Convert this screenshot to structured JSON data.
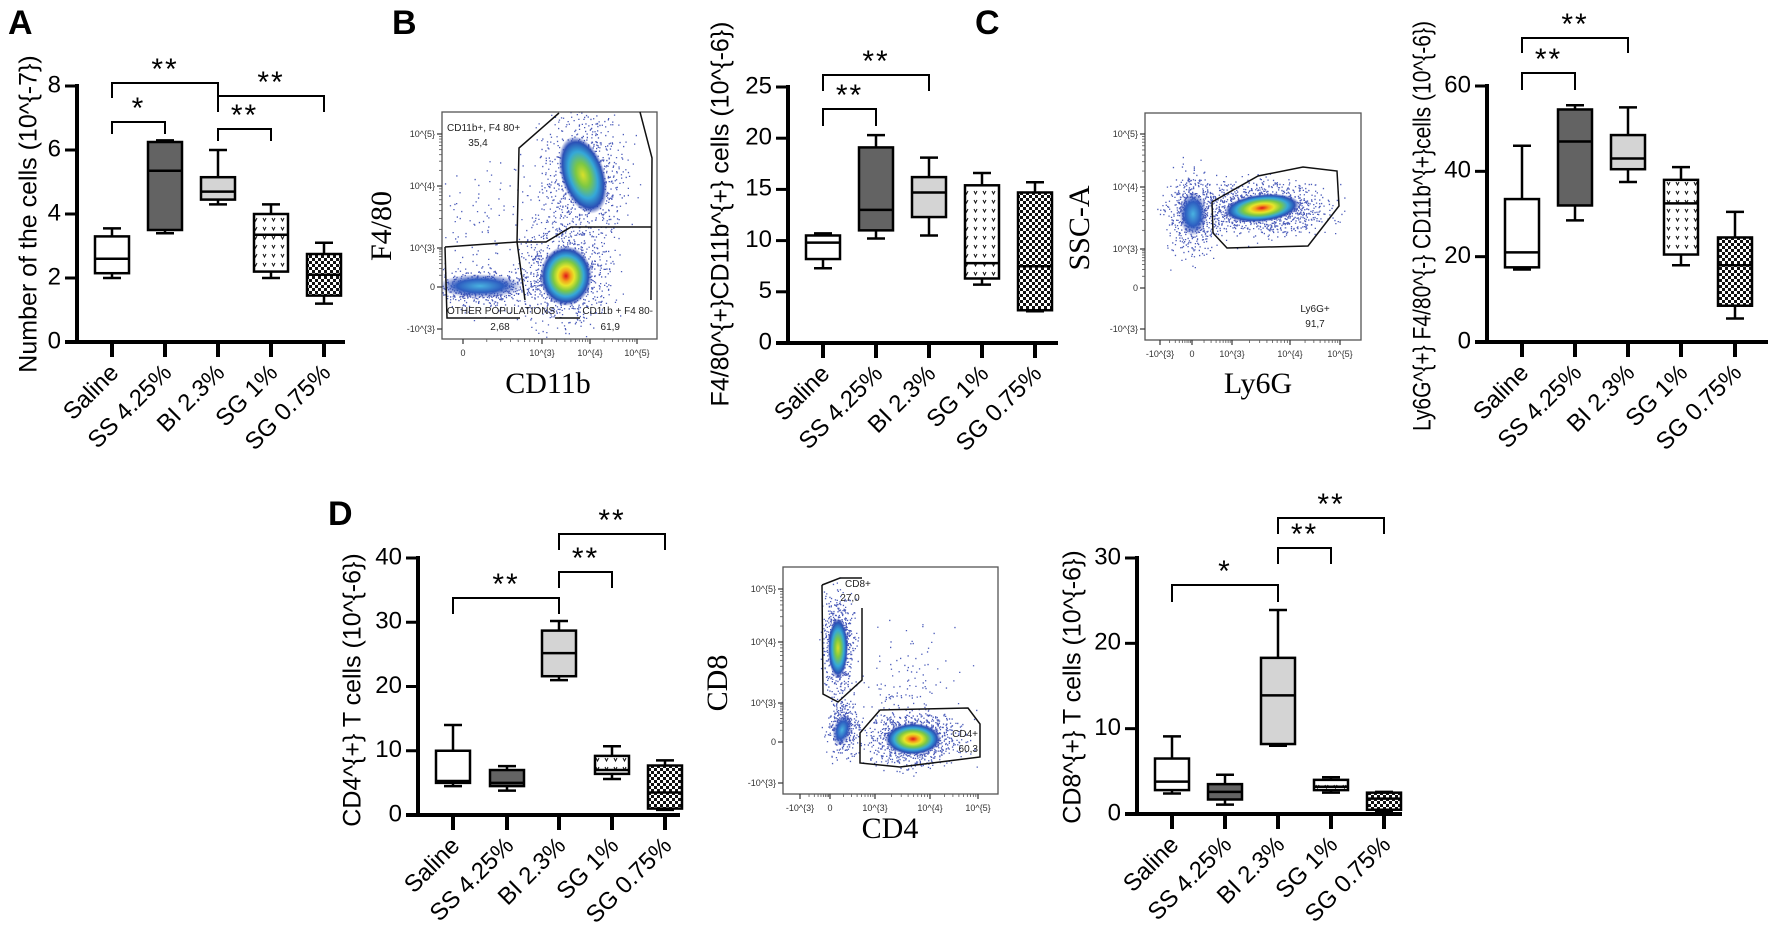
{
  "panels": {
    "A": "A",
    "B": "B",
    "C": "C",
    "D": "D"
  },
  "chart_data": [
    {
      "type": "box",
      "panel": "A",
      "ylabel": "Number of the cells (10^{-7})",
      "ylim": [
        0,
        8
      ],
      "yticks": [
        "0",
        "2",
        "4",
        "6",
        "8"
      ],
      "categories": [
        "Saline",
        "SS 4.25%",
        "BI 2.3%",
        "SG 1%",
        "SG 0.75%"
      ],
      "fills": [
        "#ffffff",
        "#636363",
        "#d4d4d4",
        "dots",
        "checker"
      ],
      "series": [
        {
          "min": 2.0,
          "q1": 2.15,
          "median": 2.6,
          "q3": 3.3,
          "max": 3.55
        },
        {
          "min": 3.4,
          "q1": 3.5,
          "median": 5.35,
          "q3": 6.25,
          "max": 6.3
        },
        {
          "min": 4.3,
          "q1": 4.45,
          "median": 4.7,
          "q3": 5.15,
          "max": 6.0
        },
        {
          "min": 2.0,
          "q1": 2.2,
          "median": 3.35,
          "q3": 4.0,
          "max": 4.3
        },
        {
          "min": 1.2,
          "q1": 1.45,
          "median": 2.1,
          "q3": 2.75,
          "max": 3.1
        }
      ],
      "significance": [
        {
          "from": 0,
          "to": 2,
          "label": "**"
        },
        {
          "from": 0,
          "to": 1,
          "label": "*"
        },
        {
          "from": 2,
          "to": 4,
          "label": "**"
        },
        {
          "from": 2,
          "to": 3,
          "label": "**"
        }
      ]
    },
    {
      "type": "box",
      "panel": "B",
      "ylabel": "F4/80^{+}CD11b^{+} cells (10^{-6})",
      "ylim": [
        0,
        25
      ],
      "yticks": [
        "0",
        "5",
        "10",
        "15",
        "20",
        "25"
      ],
      "categories": [
        "Saline",
        "SS 4.25%",
        "BI 2.3%",
        "SG 1%",
        "SG 0.75%"
      ],
      "fills": [
        "#ffffff",
        "#636363",
        "#d4d4d4",
        "dots",
        "checker"
      ],
      "series": [
        {
          "min": 7.3,
          "q1": 8.2,
          "median": 9.8,
          "q3": 10.5,
          "max": 10.7
        },
        {
          "min": 10.2,
          "q1": 11.0,
          "median": 13.0,
          "q3": 19.1,
          "max": 20.3
        },
        {
          "min": 10.5,
          "q1": 12.3,
          "median": 14.7,
          "q3": 16.2,
          "max": 18.1
        },
        {
          "min": 5.7,
          "q1": 6.3,
          "median": 7.8,
          "q3": 15.4,
          "max": 16.6
        },
        {
          "min": 3.1,
          "q1": 3.2,
          "median": 7.5,
          "q3": 14.7,
          "max": 15.7
        }
      ],
      "significance": [
        {
          "from": 0,
          "to": 2,
          "label": "**"
        },
        {
          "from": 0,
          "to": 1,
          "label": "**"
        }
      ]
    },
    {
      "type": "box",
      "panel": "C",
      "ylabel": "Ly6G^{+} F4/80^{-} CD11b^{+}cells (10^{-6})",
      "ylim": [
        0,
        60
      ],
      "yticks": [
        "0",
        "20",
        "40",
        "60"
      ],
      "categories": [
        "Saline",
        "SS 4.25%",
        "BI 2.3%",
        "SG 1%",
        "SG 0.75%"
      ],
      "fills": [
        "#ffffff",
        "#636363",
        "#d4d4d4",
        "dots",
        "checker"
      ],
      "series": [
        {
          "min": 17.0,
          "q1": 17.5,
          "median": 21.0,
          "q3": 33.5,
          "max": 46.0
        },
        {
          "min": 28.5,
          "q1": 32.0,
          "median": 47.0,
          "q3": 54.5,
          "max": 55.5
        },
        {
          "min": 37.5,
          "q1": 40.5,
          "median": 43.0,
          "q3": 48.5,
          "max": 55.0
        },
        {
          "min": 18.0,
          "q1": 20.5,
          "median": 32.5,
          "q3": 38.0,
          "max": 41.0
        },
        {
          "min": 5.5,
          "q1": 8.5,
          "median": 18.0,
          "q3": 24.5,
          "max": 30.5
        }
      ],
      "significance": [
        {
          "from": 0,
          "to": 2,
          "label": "**"
        },
        {
          "from": 0,
          "to": 1,
          "label": "**"
        }
      ]
    },
    {
      "type": "box",
      "panel": "D",
      "ylabel": "CD4^{+} T cells (10^{-6})",
      "ylim": [
        0,
        40
      ],
      "yticks": [
        "0",
        "10",
        "20",
        "30",
        "40"
      ],
      "categories": [
        "Saline",
        "SS 4.25%",
        "BI 2.3%",
        "SG 1%",
        "SG 0.75%"
      ],
      "fills": [
        "#ffffff",
        "#636363",
        "#d4d4d4",
        "dots",
        "checker"
      ],
      "series": [
        {
          "min": 4.5,
          "q1": 5.0,
          "median": 5.3,
          "q3": 10.0,
          "max": 14.0
        },
        {
          "min": 3.8,
          "q1": 4.5,
          "median": 5.0,
          "q3": 7.0,
          "max": 7.6
        },
        {
          "min": 21.0,
          "q1": 21.6,
          "median": 25.2,
          "q3": 28.7,
          "max": 30.2
        },
        {
          "min": 5.6,
          "q1": 6.4,
          "median": 7.0,
          "q3": 9.2,
          "max": 10.7
        },
        {
          "min": 0.8,
          "q1": 1.0,
          "median": 3.5,
          "q3": 7.7,
          "max": 8.5
        }
      ],
      "significance": [
        {
          "from": 0,
          "to": 2,
          "label": "**"
        },
        {
          "from": 2,
          "to": 3,
          "label": "**"
        },
        {
          "from": 2,
          "to": 4,
          "label": "**"
        }
      ]
    },
    {
      "type": "box",
      "panel": "D",
      "ylabel": "CD8^{+} T cells (10^{-6})",
      "ylim": [
        0,
        30
      ],
      "yticks": [
        "0",
        "10",
        "20",
        "30"
      ],
      "categories": [
        "Saline",
        "SS 4.25%",
        "BI 2.3%",
        "SG 1%",
        "SG 0.75%"
      ],
      "fills": [
        "#ffffff",
        "#636363",
        "#d4d4d4",
        "dots",
        "checker"
      ],
      "series": [
        {
          "min": 2.4,
          "q1": 2.8,
          "median": 3.8,
          "q3": 6.5,
          "max": 9.1
        },
        {
          "min": 1.1,
          "q1": 1.7,
          "median": 2.6,
          "q3": 3.5,
          "max": 4.6
        },
        {
          "min": 8.0,
          "q1": 8.2,
          "median": 13.9,
          "q3": 18.3,
          "max": 23.9
        },
        {
          "min": 2.5,
          "q1": 2.8,
          "median": 3.2,
          "q3": 4.0,
          "max": 4.3
        },
        {
          "min": 0.3,
          "q1": 0.5,
          "median": 1.8,
          "q3": 2.5,
          "max": 2.6
        }
      ],
      "significance": [
        {
          "from": 0,
          "to": 2,
          "label": "*"
        },
        {
          "from": 2,
          "to": 3,
          "label": "**"
        },
        {
          "from": 2,
          "to": 4,
          "label": "**"
        }
      ]
    }
  ],
  "flow_plots": [
    {
      "panel": "B",
      "xlabel": "CD11b",
      "ylabel": "F4/80",
      "xticks": [
        "0",
        "10^{3}",
        "10^{4}",
        "10^{5}"
      ],
      "yticks": [
        "10^{5}",
        "10^{4}",
        "10^{3}",
        "0",
        "-10^{3}"
      ],
      "gates": [
        {
          "name": "CD11b+, F4 80+",
          "value": "35,4"
        },
        {
          "name": "OTHER POPULATIONS",
          "value": "2,68"
        },
        {
          "name": "CD11b + F4 80-",
          "value": "61,9"
        }
      ]
    },
    {
      "panel": "C",
      "xlabel": "Ly6G",
      "ylabel": "SSC-A",
      "xticks": [
        "-10^{3}",
        "0",
        "10^{3}",
        "10^{4}",
        "10^{5}"
      ],
      "yticks": [
        "10^{5}",
        "10^{4}",
        "10^{3}",
        "0",
        "-10^{3}"
      ],
      "gates": [
        {
          "name": "Ly6G+",
          "value": "91,7"
        }
      ]
    },
    {
      "panel": "D",
      "xlabel": "CD4",
      "ylabel": "CD8",
      "xticks": [
        "-10^{3}",
        "0",
        "10^{3}",
        "10^{4}",
        "10^{5}"
      ],
      "yticks": [
        "10^{5}",
        "10^{4}",
        "10^{3}",
        "0",
        "-10^{3}"
      ],
      "gates": [
        {
          "name": "CD8+",
          "value": "27,0"
        },
        {
          "name": "CD4+",
          "value": "60,3"
        }
      ]
    }
  ]
}
